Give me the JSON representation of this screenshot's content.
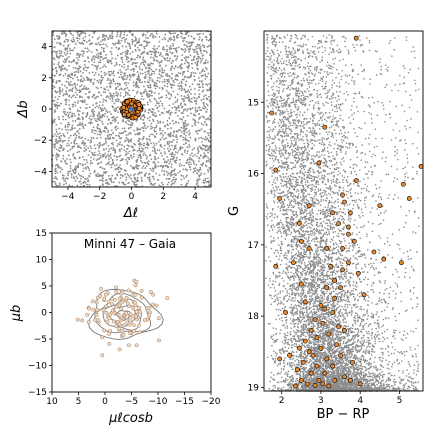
{
  "chart_data": [
    {
      "panel": "spatial",
      "type": "scatter",
      "xlabel": "Δℓ",
      "ylabel": "Δb",
      "xlim": [
        -5,
        5
      ],
      "ylim": [
        -5,
        5
      ],
      "xticks": [
        -4,
        -2,
        0,
        2,
        4
      ],
      "yticks": [
        -4,
        -2,
        0,
        2,
        4
      ],
      "xtick_labels": [
        "−4",
        "−2",
        "0",
        "2",
        "4"
      ],
      "ytick_labels": [
        "−4",
        "−2",
        "0",
        "2",
        "4"
      ],
      "grid": false,
      "series": [
        {
          "role": "field stars",
          "color": "#8c8c8c",
          "distribution": "uniform",
          "extent": [
            -5,
            5,
            -5,
            5
          ],
          "approx_count": 3000
        },
        {
          "role": "cluster members",
          "color": "#e8872c",
          "edgecolor": "#000000",
          "center": [
            0,
            0
          ],
          "radius": 0.6,
          "approx_count": 140
        },
        {
          "role": "center marker",
          "color": "#3a78c2",
          "center": [
            0,
            0
          ],
          "approx_count": 8
        }
      ]
    },
    {
      "panel": "proper-motion",
      "type": "scatter",
      "title": "Minni 47  –  Gaia",
      "xlabel": "μℓcosb",
      "ylabel": "μb",
      "xlim": [
        10,
        -20
      ],
      "ylim": [
        -15,
        15
      ],
      "xticks": [
        10,
        5,
        0,
        -5,
        -10,
        -15,
        -20
      ],
      "yticks": [
        -15,
        -10,
        -5,
        0,
        5,
        10,
        15
      ],
      "xtick_labels": [
        "10",
        "5",
        "0",
        "−5",
        "−10",
        "−15",
        "−20"
      ],
      "ytick_labels": [
        "−15",
        "−10",
        "−5",
        "0",
        "5",
        "10",
        "15"
      ],
      "grid": false,
      "series": [
        {
          "role": "members",
          "color": "#f4ddc6",
          "edgecolor": "#a0785a",
          "center": [
            -3.5,
            0
          ],
          "spread": [
            3.5,
            3
          ],
          "approx_count": 130
        }
      ],
      "contours": {
        "color": "#7a7a7a",
        "center": [
          -3.5,
          -0.5
        ],
        "radii": [
          [
            1.2,
            0.9
          ],
          [
            2.4,
            1.8
          ],
          [
            3.6,
            2.7
          ],
          [
            5.0,
            3.6
          ],
          [
            6.5,
            4.6
          ]
        ]
      }
    },
    {
      "panel": "cmd",
      "type": "scatter",
      "xlabel": "BP − RP",
      "ylabel": "G",
      "xlim": [
        1.55,
        5.6
      ],
      "ylim": [
        19.05,
        14.0
      ],
      "y_inverted": true,
      "xticks": [
        2,
        3,
        4,
        5
      ],
      "yticks": [
        15,
        16,
        17,
        18,
        19
      ],
      "xtick_labels": [
        "2",
        "3",
        "4",
        "5"
      ],
      "ytick_labels": [
        "15",
        "16",
        "17",
        "18",
        "19"
      ],
      "grid": false,
      "series": [
        {
          "role": "field stars",
          "color": "#8c8c8c",
          "approx_count": 9000
        },
        {
          "role": "cluster members",
          "color": "#e8872c",
          "edgecolor": "#000000",
          "points": [
            [
              3.9,
              14.1
            ],
            [
              1.75,
              15.15
            ],
            [
              3.1,
              15.35
            ],
            [
              2.95,
              15.85
            ],
            [
              5.55,
              15.9
            ],
            [
              1.85,
              15.95
            ],
            [
              3.9,
              16.1
            ],
            [
              5.1,
              16.15
            ],
            [
              1.95,
              16.35
            ],
            [
              3.55,
              16.3
            ],
            [
              3.6,
              16.4
            ],
            [
              4.5,
              16.45
            ],
            [
              2.7,
              16.45
            ],
            [
              3.3,
              16.55
            ],
            [
              3.75,
              16.55
            ],
            [
              5.25,
              16.35
            ],
            [
              2.45,
              16.7
            ],
            [
              3.45,
              16.7
            ],
            [
              3.7,
              16.75
            ],
            [
              2.5,
              16.95
            ],
            [
              3.7,
              16.85
            ],
            [
              3.85,
              16.95
            ],
            [
              3.55,
              17.05
            ],
            [
              2.7,
              17.05
            ],
            [
              3.15,
              17.05
            ],
            [
              4.35,
              17.1
            ],
            [
              4.6,
              17.2
            ],
            [
              3.7,
              17.25
            ],
            [
              2.3,
              17.25
            ],
            [
              5.05,
              17.25
            ],
            [
              1.85,
              17.3
            ],
            [
              3.25,
              17.3
            ],
            [
              3.55,
              17.35
            ],
            [
              3.35,
              17.5
            ],
            [
              3.95,
              17.4
            ],
            [
              2.5,
              17.55
            ],
            [
              3.5,
              17.6
            ],
            [
              3.15,
              17.6
            ],
            [
              3.35,
              17.75
            ],
            [
              4.1,
              17.7
            ],
            [
              2.6,
              17.8
            ],
            [
              3.0,
              17.85
            ],
            [
              3.1,
              17.9
            ],
            [
              2.1,
              17.95
            ],
            [
              3.3,
              17.95
            ],
            [
              2.85,
              18.05
            ],
            [
              3.05,
              18.1
            ],
            [
              2.75,
              18.2
            ],
            [
              3.2,
              18.25
            ],
            [
              2.9,
              18.3
            ],
            [
              2.6,
              18.35
            ],
            [
              3.4,
              18.4
            ],
            [
              3.0,
              18.45
            ],
            [
              2.7,
              18.5
            ],
            [
              2.2,
              18.55
            ],
            [
              2.8,
              18.55
            ],
            [
              3.15,
              18.6
            ],
            [
              3.5,
              18.55
            ],
            [
              2.55,
              18.65
            ],
            [
              2.9,
              18.7
            ],
            [
              3.3,
              18.7
            ],
            [
              2.4,
              18.75
            ],
            [
              2.75,
              18.8
            ],
            [
              3.1,
              18.8
            ],
            [
              3.6,
              18.85
            ],
            [
              2.5,
              18.9
            ],
            [
              2.95,
              18.9
            ],
            [
              3.35,
              18.9
            ],
            [
              2.65,
              18.95
            ],
            [
              3.05,
              18.95
            ],
            [
              2.35,
              18.98
            ],
            [
              3.75,
              18.9
            ],
            [
              2.85,
              18.97
            ],
            [
              3.2,
              18.98
            ],
            [
              4.0,
              18.95
            ],
            [
              2.45,
              18.45
            ],
            [
              3.6,
              18.2
            ],
            [
              1.95,
              18.6
            ],
            [
              3.8,
              18.65
            ],
            [
              3.45,
              18.15
            ]
          ]
        }
      ]
    }
  ]
}
